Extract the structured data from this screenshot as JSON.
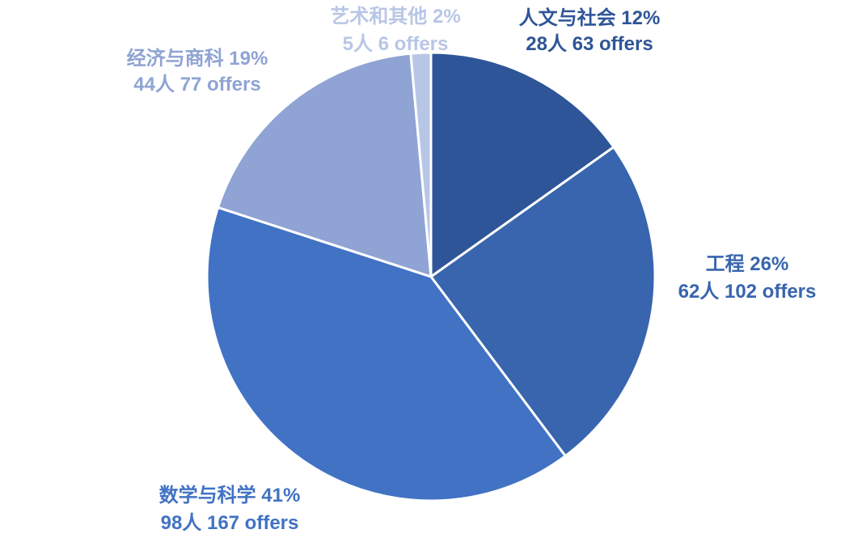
{
  "chart_data": {
    "type": "pie",
    "start_angle_deg": 0,
    "direction": "clockwise",
    "slices": [
      {
        "category": "人文与社会",
        "percent_label": "12%",
        "people": "28人",
        "offers": "63 offers",
        "value": 63,
        "color": "#2E5597"
      },
      {
        "category": "工程",
        "percent_label": "26%",
        "people": "62人",
        "offers": "102 offers",
        "value": 102,
        "color": "#3865AE"
      },
      {
        "category": "数学与科学",
        "percent_label": "41%",
        "people": "98人",
        "offers": "167 offers",
        "value": 167,
        "color": "#4172C4"
      },
      {
        "category": "经济与商科",
        "percent_label": "19%",
        "people": "44人",
        "offers": "77 offers",
        "value": 77,
        "color": "#8FA3D4"
      },
      {
        "category": "艺术和其他",
        "percent_label": "2%",
        "people": "5人",
        "offers": "6 offers",
        "value": 6,
        "color": "#B8C6E6"
      }
    ]
  }
}
